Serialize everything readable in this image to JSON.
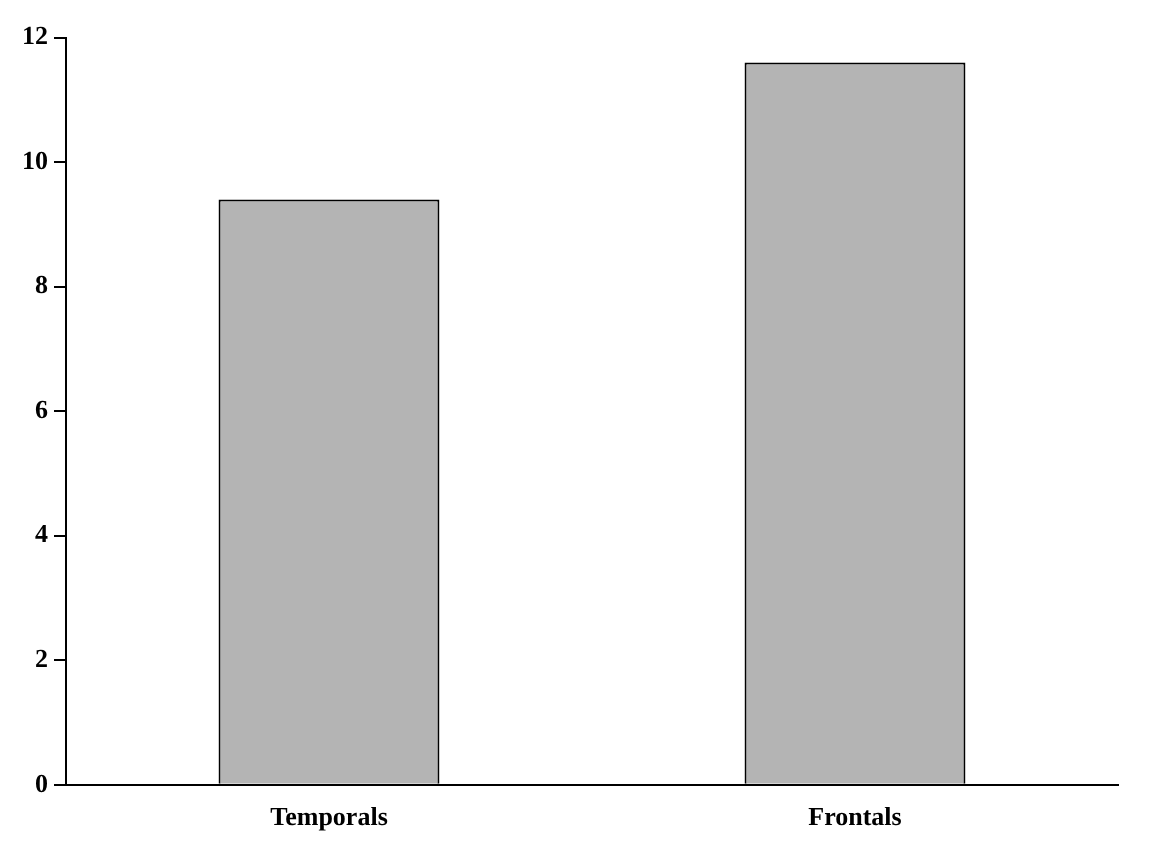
{
  "chart_data": {
    "type": "bar",
    "categories": [
      "Temporals",
      "Frontals"
    ],
    "values": [
      9.4,
      11.6
    ],
    "color": "#b4b4b4",
    "ylim": [
      0,
      12
    ],
    "yticks": [
      0,
      2,
      4,
      6,
      8,
      10,
      12
    ],
    "grid": false,
    "legend": false
  }
}
